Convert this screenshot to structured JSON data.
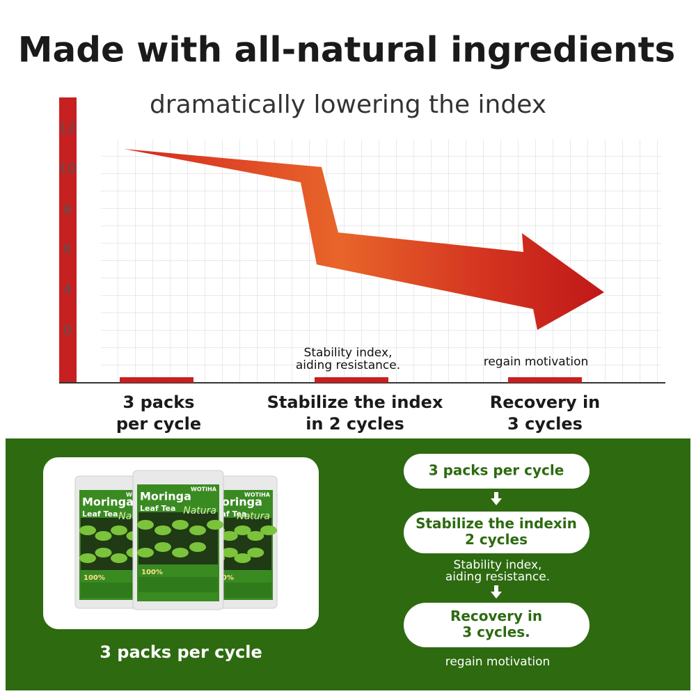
{
  "header": {
    "title": "Made with all-natural ingredients",
    "subtitle": "dramatically lowering the index"
  },
  "graph": {
    "y_labels": [
      "12",
      "10",
      "8",
      "6",
      "4",
      "0"
    ],
    "annotations": [
      [
        "Stability index,",
        "aiding resistance."
      ],
      [
        "regain motivation"
      ]
    ],
    "stages": [
      [
        "3 packs",
        "per cycle"
      ],
      [
        "Stabilize the index",
        "in 2 cycles"
      ],
      [
        "Recovery in",
        "3 cycles"
      ]
    ]
  },
  "product": {
    "brand": "WOTIHA",
    "name": "Moringa",
    "kind": "Leaf Tea",
    "script": "Natura",
    "badge": "100%",
    "caption": "3 packs per cycle"
  },
  "flow": {
    "steps": [
      [
        "3 packs per cycle"
      ],
      [
        "Stabilize the indexin",
        "2 cycles"
      ],
      [
        "Recovery in",
        "3 cycles."
      ]
    ],
    "notes": [
      [
        "Stability index,",
        "aiding resistance."
      ],
      [
        "regain motivation"
      ]
    ]
  }
}
